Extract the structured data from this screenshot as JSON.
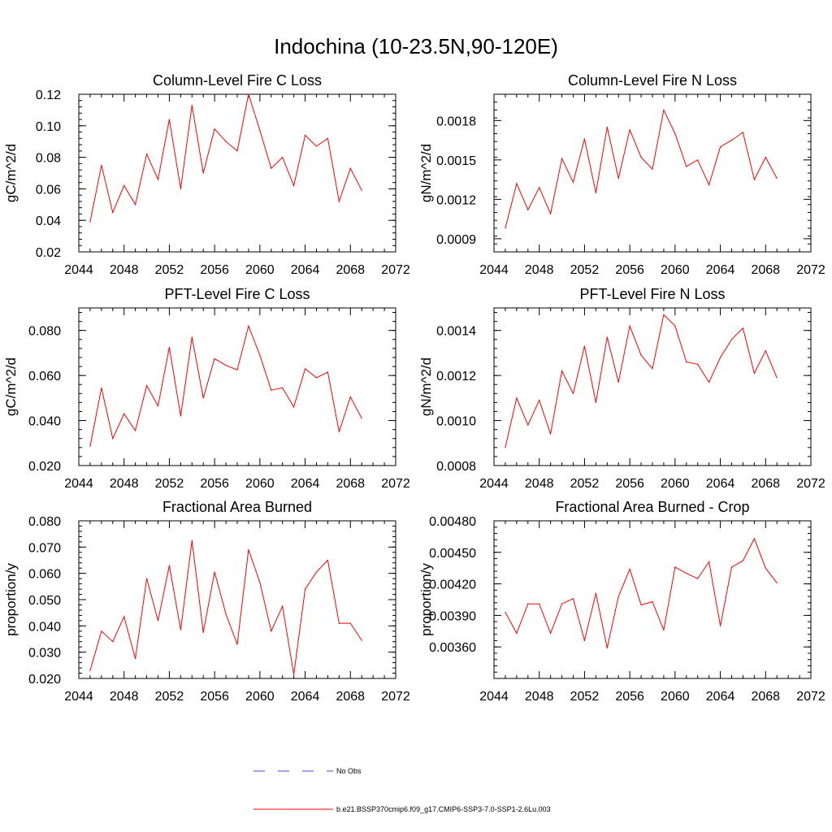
{
  "page_title": "Indochina (10-23.5N,90-120E)",
  "chart_data": [
    {
      "type": "line",
      "title": "Column-Level Fire C Loss",
      "ylabel": "gC/m^2/d",
      "xlim": [
        2044,
        2072
      ],
      "x_ticks": [
        2044,
        2048,
        2052,
        2056,
        2060,
        2064,
        2068,
        2072
      ],
      "ylim": [
        0.02,
        0.12
      ],
      "y_ticks": [
        0.02,
        0.04,
        0.06,
        0.08,
        0.1,
        0.12
      ],
      "y_tick_labels": [
        "0.02",
        "0.04",
        "0.06",
        "0.08",
        "0.10",
        "0.12"
      ],
      "y_minor_step": 0.004,
      "x": [
        2045,
        2046,
        2047,
        2048,
        2049,
        2050,
        2051,
        2052,
        2053,
        2054,
        2055,
        2056,
        2057,
        2058,
        2059,
        2060,
        2061,
        2062,
        2063,
        2064,
        2065,
        2066,
        2067,
        2068,
        2069
      ],
      "series": [
        {
          "color": "#ff0000",
          "values": [
            0.039,
            0.075,
            0.045,
            0.062,
            0.05,
            0.082,
            0.066,
            0.104,
            0.06,
            0.113,
            0.07,
            0.098,
            0.09,
            0.084,
            0.12,
            0.097,
            0.073,
            0.08,
            0.062,
            0.094,
            0.087,
            0.092,
            0.052,
            0.073,
            0.059
          ]
        }
      ]
    },
    {
      "type": "line",
      "title": "Column-Level Fire N Loss",
      "ylabel": "gN/m^2/d",
      "xlim": [
        2044,
        2072
      ],
      "x_ticks": [
        2044,
        2048,
        2052,
        2056,
        2060,
        2064,
        2068,
        2072
      ],
      "ylim": [
        0.0008,
        0.002
      ],
      "y_ticks": [
        0.0009,
        0.0012,
        0.0015,
        0.0018
      ],
      "y_tick_labels": [
        "0.0009",
        "0.0012",
        "0.0015",
        "0.0018"
      ],
      "y_minor_step": 6e-05,
      "x": [
        2045,
        2046,
        2047,
        2048,
        2049,
        2050,
        2051,
        2052,
        2053,
        2054,
        2055,
        2056,
        2057,
        2058,
        2059,
        2060,
        2061,
        2062,
        2063,
        2064,
        2065,
        2066,
        2067,
        2068,
        2069
      ],
      "series": [
        {
          "color": "#ff0000",
          "values": [
            0.00098,
            0.00132,
            0.00112,
            0.00129,
            0.00109,
            0.00151,
            0.00133,
            0.00166,
            0.00125,
            0.00175,
            0.00136,
            0.00173,
            0.00152,
            0.00143,
            0.00188,
            0.0017,
            0.00145,
            0.0015,
            0.00131,
            0.0016,
            0.00165,
            0.00171,
            0.00135,
            0.00152,
            0.00136
          ]
        }
      ]
    },
    {
      "type": "line",
      "title": "PFT-Level Fire C Loss",
      "ylabel": "gC/m^2/d",
      "xlim": [
        2044,
        2072
      ],
      "x_ticks": [
        2044,
        2048,
        2052,
        2056,
        2060,
        2064,
        2068,
        2072
      ],
      "ylim": [
        0.02,
        0.09
      ],
      "y_ticks": [
        0.02,
        0.04,
        0.06,
        0.08
      ],
      "y_tick_labels": [
        "0.020",
        "0.040",
        "0.060",
        "0.080"
      ],
      "y_minor_step": 0.004,
      "x": [
        2045,
        2046,
        2047,
        2048,
        2049,
        2050,
        2051,
        2052,
        2053,
        2054,
        2055,
        2056,
        2057,
        2058,
        2059,
        2060,
        2061,
        2062,
        2063,
        2064,
        2065,
        2066,
        2067,
        2068,
        2069
      ],
      "series": [
        {
          "color": "#ff0000",
          "values": [
            0.0285,
            0.0545,
            0.032,
            0.043,
            0.0355,
            0.0555,
            0.0465,
            0.0725,
            0.042,
            0.077,
            0.05,
            0.0675,
            0.0645,
            0.0625,
            0.082,
            0.069,
            0.0535,
            0.0545,
            0.046,
            0.063,
            0.059,
            0.0615,
            0.035,
            0.0505,
            0.041
          ]
        }
      ]
    },
    {
      "type": "line",
      "title": "PFT-Level Fire N Loss",
      "ylabel": "gN/m^2/d",
      "xlim": [
        2044,
        2072
      ],
      "x_ticks": [
        2044,
        2048,
        2052,
        2056,
        2060,
        2064,
        2068,
        2072
      ],
      "ylim": [
        0.0008,
        0.0015
      ],
      "y_ticks": [
        0.0008,
        0.001,
        0.0012,
        0.0014
      ],
      "y_tick_labels": [
        "0.0008",
        "0.0010",
        "0.0012",
        "0.0014"
      ],
      "y_minor_step": 4e-05,
      "x": [
        2045,
        2046,
        2047,
        2048,
        2049,
        2050,
        2051,
        2052,
        2053,
        2054,
        2055,
        2056,
        2057,
        2058,
        2059,
        2060,
        2061,
        2062,
        2063,
        2064,
        2065,
        2066,
        2067,
        2068,
        2069
      ],
      "series": [
        {
          "color": "#ff0000",
          "values": [
            0.00088,
            0.0011,
            0.00098,
            0.00109,
            0.00094,
            0.00122,
            0.00112,
            0.00133,
            0.00108,
            0.00137,
            0.00117,
            0.00142,
            0.00129,
            0.00123,
            0.00147,
            0.00142,
            0.00126,
            0.00125,
            0.00117,
            0.00128,
            0.00136,
            0.00141,
            0.00121,
            0.00131,
            0.00119
          ]
        }
      ]
    },
    {
      "type": "line",
      "title": "Fractional Area Burned",
      "ylabel": "proportion/y",
      "xlim": [
        2044,
        2072
      ],
      "x_ticks": [
        2044,
        2048,
        2052,
        2056,
        2060,
        2064,
        2068,
        2072
      ],
      "ylim": [
        0.02,
        0.08
      ],
      "y_ticks": [
        0.02,
        0.03,
        0.04,
        0.05,
        0.06,
        0.07,
        0.08
      ],
      "y_tick_labels": [
        "0.020",
        "0.030",
        "0.040",
        "0.050",
        "0.060",
        "0.070",
        "0.080"
      ],
      "y_minor_step": 0.002,
      "x": [
        2045,
        2046,
        2047,
        2048,
        2049,
        2050,
        2051,
        2052,
        2053,
        2054,
        2055,
        2056,
        2057,
        2058,
        2059,
        2060,
        2061,
        2062,
        2063,
        2064,
        2065,
        2066,
        2067,
        2068,
        2069
      ],
      "series": [
        {
          "color": "#ff0000",
          "values": [
            0.023,
            0.038,
            0.034,
            0.0435,
            0.0275,
            0.058,
            0.042,
            0.063,
            0.0385,
            0.0725,
            0.0375,
            0.0605,
            0.0445,
            0.033,
            0.069,
            0.0565,
            0.038,
            0.0475,
            0.0215,
            0.054,
            0.0605,
            0.065,
            0.041,
            0.041,
            0.0345
          ]
        }
      ]
    },
    {
      "type": "line",
      "title": "Fractional Area Burned - Crop",
      "ylabel": "proportion/y",
      "xlim": [
        2044,
        2072
      ],
      "x_ticks": [
        2044,
        2048,
        2052,
        2056,
        2060,
        2064,
        2068,
        2072
      ],
      "ylim": [
        0.0033,
        0.0048
      ],
      "y_ticks": [
        0.0036,
        0.0039,
        0.0042,
        0.0045,
        0.0048
      ],
      "y_tick_labels": [
        "0.00360",
        "0.00390",
        "0.00420",
        "0.00450",
        "0.00480"
      ],
      "y_minor_step": 6e-05,
      "x": [
        2045,
        2046,
        2047,
        2048,
        2049,
        2050,
        2051,
        2052,
        2053,
        2054,
        2055,
        2056,
        2057,
        2058,
        2059,
        2060,
        2061,
        2062,
        2063,
        2064,
        2065,
        2066,
        2067,
        2068,
        2069
      ],
      "series": [
        {
          "color": "#ff0000",
          "values": [
            0.00393,
            0.00373,
            0.00401,
            0.00401,
            0.00373,
            0.00401,
            0.00406,
            0.00366,
            0.00411,
            0.00359,
            0.00408,
            0.00434,
            0.004,
            0.00403,
            0.00376,
            0.00436,
            0.0043,
            0.00425,
            0.00441,
            0.0038,
            0.00436,
            0.00442,
            0.00463,
            0.00435,
            0.00421
          ]
        }
      ]
    }
  ],
  "legend": [
    {
      "label": "No Obs",
      "color": "#4a4ad8",
      "dash": "dashed"
    },
    {
      "label": "b.e21.BSSP370cmip6.f09_g17.CMIP6-SSP3-7.0-SSP1-2.6Lu.003",
      "color": "#ff0000",
      "dash": "solid"
    }
  ]
}
